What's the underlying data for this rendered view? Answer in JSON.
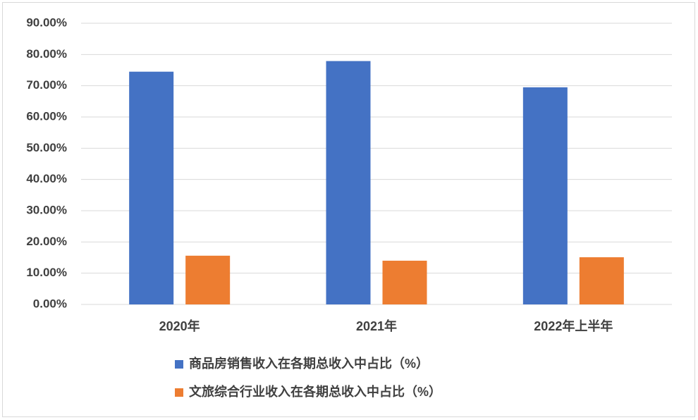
{
  "chart_data": {
    "type": "bar",
    "categories": [
      "2020年",
      "2021年",
      "2022年上半年"
    ],
    "series": [
      {
        "name": "商品房销售收入在各期总收入中占比（%）",
        "color": "#4472c4",
        "values": [
          74.5,
          77.9,
          69.5
        ]
      },
      {
        "name": "文旅综合行业收入在各期总收入中占比（%）",
        "color": "#ed7d31",
        "values": [
          15.6,
          14.0,
          15.1
        ]
      }
    ],
    "ylim": [
      0,
      90
    ],
    "yticks": [
      {
        "value": 0,
        "label": "0.00%"
      },
      {
        "value": 10,
        "label": "10.00%"
      },
      {
        "value": 20,
        "label": "20.00%"
      },
      {
        "value": 30,
        "label": "30.00%"
      },
      {
        "value": 40,
        "label": "40.00%"
      },
      {
        "value": 50,
        "label": "50.00%"
      },
      {
        "value": 60,
        "label": "60.00%"
      },
      {
        "value": 70,
        "label": "70.00%"
      },
      {
        "value": 80,
        "label": "80.00%"
      },
      {
        "value": 90,
        "label": "90.00%"
      }
    ],
    "grid": true,
    "legend": "bottom"
  }
}
